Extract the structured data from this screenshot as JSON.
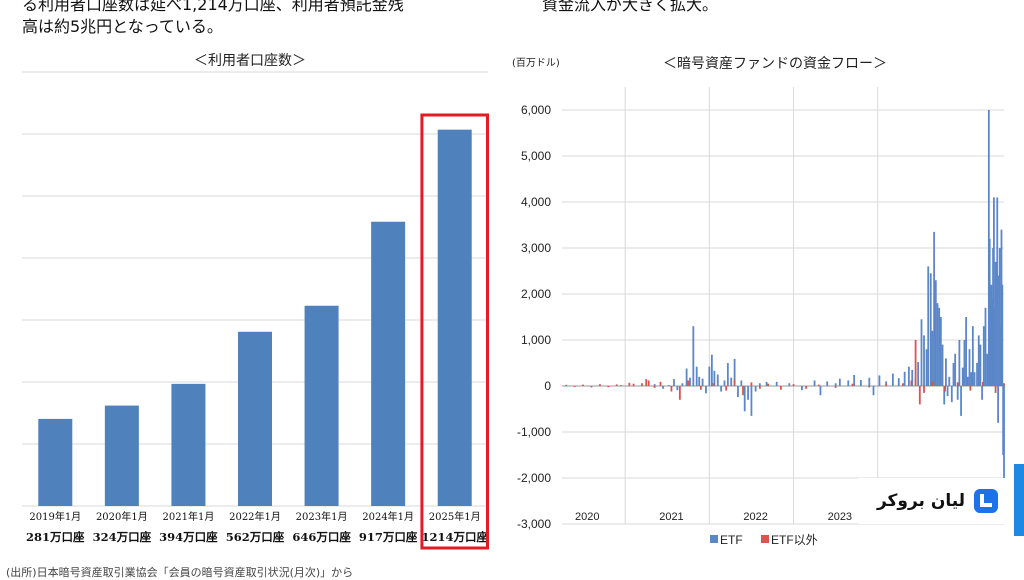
{
  "header": {
    "left_line1": "る利用者口座数は延べ1,214万口座、利用者預託金残",
    "left_line2": "高は約5兆円となっている。",
    "right_line1": "資金流入が大きく拡大。"
  },
  "footer": {
    "left_text": "(出所)日本暗号資産取引業協会「会員の暗号資産取引状況(月次)」から"
  },
  "watermark": {
    "label": "ليان بروكر"
  },
  "colors": {
    "bar": "#4f81bd",
    "etf": "#5b86c8",
    "non_etf": "#d9534f",
    "highlight": "#e31b23",
    "grid": "#d9d9d9"
  },
  "chart_data": [
    {
      "type": "bar",
      "title": "＜利用者口座数＞",
      "categories": [
        "2019年1月",
        "2020年1月",
        "2021年1月",
        "2022年1月",
        "2023年1月",
        "2024年1月",
        "2025年1月"
      ],
      "account_labels": [
        "281万口座",
        "324万口座",
        "394万口座",
        "562万口座",
        "646万口座",
        "917万口座",
        "1214万口座"
      ],
      "values": [
        281,
        324,
        394,
        562,
        646,
        917,
        1214
      ],
      "ylim": [
        0,
        1400
      ],
      "highlighted_category": "2025年1月",
      "grid": true
    },
    {
      "type": "bar",
      "title": "＜暗号資産ファンドの資金フロー＞",
      "unit_label": "(百万ドル)",
      "ylim": [
        -3000,
        6500
      ],
      "yticks": [
        6000,
        5000,
        4000,
        3000,
        2000,
        1000,
        0,
        -1000,
        -2000,
        -3000
      ],
      "ytick_labels": [
        "6,000",
        "5,000",
        "4,000",
        "3,000",
        "2,000",
        "1,000",
        "0",
        "-1,000",
        "-2,000",
        "-3,000"
      ],
      "x_labels": [
        "2020",
        "2021",
        "2022",
        "2023"
      ],
      "x_range_years": [
        2019.75,
        2025.0
      ],
      "legend": [
        "ETF",
        "ETF以外"
      ],
      "series": [
        {
          "name": "ETF",
          "points": [
            [
              2020.85,
              40
            ],
            [
              2020.95,
              -60
            ],
            [
              2021.02,
              20
            ],
            [
              2021.08,
              150
            ],
            [
              2021.12,
              -90
            ],
            [
              2021.18,
              60
            ],
            [
              2021.23,
              380
            ],
            [
              2021.27,
              180
            ],
            [
              2021.31,
              1300
            ],
            [
              2021.35,
              420
            ],
            [
              2021.38,
              200
            ],
            [
              2021.42,
              160
            ],
            [
              2021.46,
              -160
            ],
            [
              2021.5,
              420
            ],
            [
              2021.53,
              680
            ],
            [
              2021.56,
              330
            ],
            [
              2021.6,
              250
            ],
            [
              2021.64,
              -120
            ],
            [
              2021.68,
              120
            ],
            [
              2021.72,
              500
            ],
            [
              2021.76,
              180
            ],
            [
              2021.8,
              590
            ],
            [
              2021.84,
              -240
            ],
            [
              2021.88,
              120
            ],
            [
              2021.92,
              -550
            ],
            [
              2021.96,
              -300
            ],
            [
              2022.0,
              -650
            ],
            [
              2022.05,
              -120
            ],
            [
              2022.1,
              60
            ],
            [
              2022.18,
              90
            ],
            [
              2022.3,
              90
            ],
            [
              2022.45,
              60
            ],
            [
              2022.6,
              -90
            ],
            [
              2022.75,
              120
            ],
            [
              2022.82,
              -200
            ],
            [
              2022.9,
              100
            ],
            [
              2023.0,
              60
            ],
            [
              2023.05,
              160
            ],
            [
              2023.15,
              120
            ],
            [
              2023.22,
              240
            ],
            [
              2023.3,
              130
            ],
            [
              2023.4,
              180
            ],
            [
              2023.45,
              -200
            ],
            [
              2023.52,
              230
            ],
            [
              2023.6,
              100
            ],
            [
              2023.68,
              270
            ],
            [
              2023.75,
              170
            ],
            [
              2023.82,
              310
            ],
            [
              2023.87,
              420
            ],
            [
              2023.91,
              350
            ],
            [
              2023.95,
              180
            ],
            [
              2023.98,
              520
            ],
            [
              2024.02,
              1450
            ],
            [
              2024.05,
              1100
            ],
            [
              2024.08,
              800
            ],
            [
              2024.1,
              2600
            ],
            [
              2024.13,
              2450
            ],
            [
              2024.15,
              1200
            ],
            [
              2024.17,
              3350
            ],
            [
              2024.19,
              2300
            ],
            [
              2024.21,
              1800
            ],
            [
              2024.23,
              1700
            ],
            [
              2024.25,
              1500
            ],
            [
              2024.27,
              900
            ],
            [
              2024.29,
              -400
            ],
            [
              2024.31,
              600
            ],
            [
              2024.33,
              -220
            ],
            [
              2024.35,
              200
            ],
            [
              2024.38,
              -350
            ],
            [
              2024.4,
              500
            ],
            [
              2024.42,
              700
            ],
            [
              2024.45,
              -300
            ],
            [
              2024.47,
              1000
            ],
            [
              2024.49,
              -650
            ],
            [
              2024.51,
              400
            ],
            [
              2024.53,
              1000
            ],
            [
              2024.55,
              1500
            ],
            [
              2024.57,
              200
            ],
            [
              2024.59,
              800
            ],
            [
              2024.61,
              300
            ],
            [
              2024.63,
              1300
            ],
            [
              2024.65,
              300
            ],
            [
              2024.68,
              500
            ],
            [
              2024.7,
              1100
            ],
            [
              2024.72,
              900
            ],
            [
              2024.74,
              -300
            ],
            [
              2024.76,
              1300
            ],
            [
              2024.78,
              1700
            ],
            [
              2024.8,
              700
            ],
            [
              2024.82,
              6000
            ],
            [
              2024.83,
              3200
            ],
            [
              2024.85,
              2200
            ],
            [
              2024.86,
              1900
            ],
            [
              2024.87,
              3000
            ],
            [
              2024.88,
              4100
            ],
            [
              2024.89,
              1700
            ],
            [
              2024.9,
              2700
            ],
            [
              2024.92,
              4100
            ],
            [
              2024.93,
              -800
            ],
            [
              2024.94,
              2400
            ],
            [
              2024.95,
              3000
            ],
            [
              2024.96,
              1300
            ],
            [
              2024.97,
              3400
            ],
            [
              2024.98,
              2200
            ],
            [
              2024.99,
              -1500
            ],
            [
              2025.0,
              -2000
            ]
          ]
        },
        {
          "name": "ETF以外",
          "points": [
            [
              2019.8,
              25
            ],
            [
              2019.9,
              -20
            ],
            [
              2020.0,
              30
            ],
            [
              2020.1,
              -30
            ],
            [
              2020.2,
              40
            ],
            [
              2020.3,
              -25
            ],
            [
              2020.4,
              35
            ],
            [
              2020.45,
              20
            ],
            [
              2020.55,
              70
            ],
            [
              2020.6,
              50
            ],
            [
              2020.7,
              60
            ],
            [
              2020.75,
              150
            ],
            [
              2020.78,
              120
            ],
            [
              2020.85,
              -40
            ],
            [
              2020.92,
              90
            ],
            [
              2021.05,
              -120
            ],
            [
              2021.15,
              -300
            ],
            [
              2021.25,
              120
            ],
            [
              2021.4,
              -80
            ],
            [
              2021.55,
              60
            ],
            [
              2021.7,
              -100
            ],
            [
              2021.8,
              140
            ],
            [
              2021.9,
              -200
            ],
            [
              2022.0,
              80
            ],
            [
              2022.1,
              -60
            ],
            [
              2022.2,
              50
            ],
            [
              2022.35,
              -80
            ],
            [
              2022.5,
              40
            ],
            [
              2022.65,
              -60
            ],
            [
              2022.8,
              30
            ],
            [
              2023.0,
              -40
            ],
            [
              2023.2,
              50
            ],
            [
              2023.4,
              -30
            ],
            [
              2023.6,
              40
            ],
            [
              2023.8,
              60
            ],
            [
              2023.9,
              120
            ],
            [
              2023.95,
              1000
            ],
            [
              2024.0,
              -400
            ],
            [
              2024.05,
              -150
            ],
            [
              2024.15,
              100
            ],
            [
              2024.3,
              -120
            ],
            [
              2024.45,
              80
            ],
            [
              2024.6,
              -100
            ],
            [
              2024.75,
              90
            ],
            [
              2024.9,
              -150
            ],
            [
              2025.0,
              60
            ]
          ]
        }
      ],
      "grid": true
    }
  ]
}
